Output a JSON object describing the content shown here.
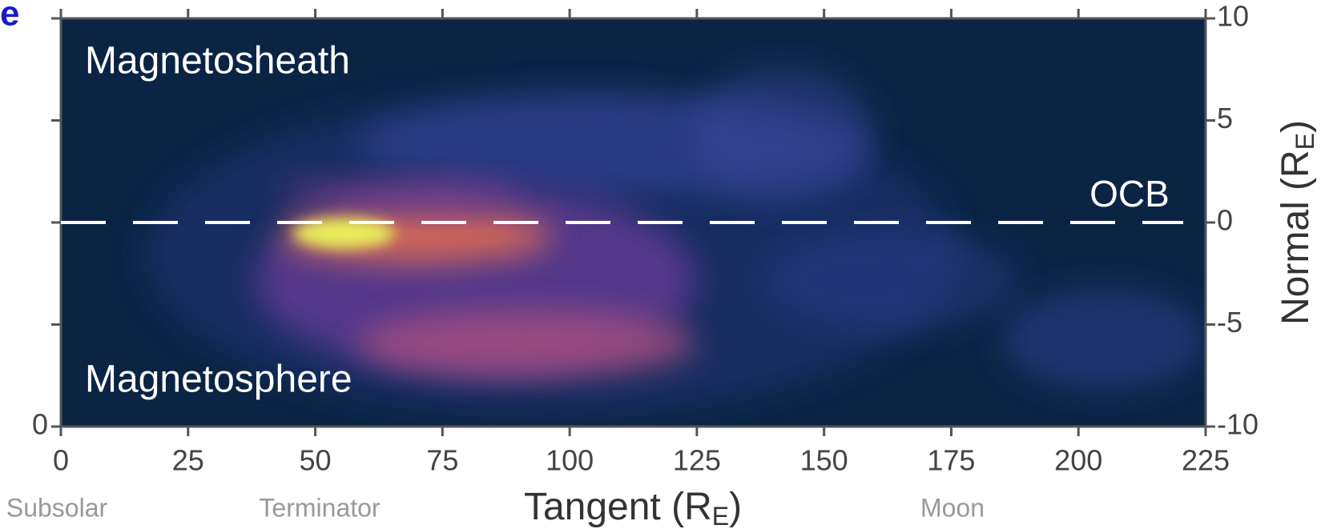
{
  "chart_data": {
    "type": "heatmap",
    "panel_label": "e",
    "xlabel": [
      "Tangent (R",
      "E",
      ")"
    ],
    "ylabel": [
      "Normal (R",
      "E",
      ")"
    ],
    "xlim": [
      0,
      225
    ],
    "xticks": [
      0,
      25,
      50,
      75,
      100,
      125,
      150,
      175,
      200,
      225
    ],
    "ylim": [
      -10,
      10
    ],
    "yticks": [
      10,
      5,
      0,
      -5,
      -10
    ],
    "left_yticks": [
      0
    ],
    "region_labels": [
      "Magnetosheath",
      "Magnetosphere"
    ],
    "boundary": {
      "label": "OCB",
      "y": 0
    },
    "annotations": [
      "Subsolar",
      "Terminator",
      "Moon"
    ]
  }
}
